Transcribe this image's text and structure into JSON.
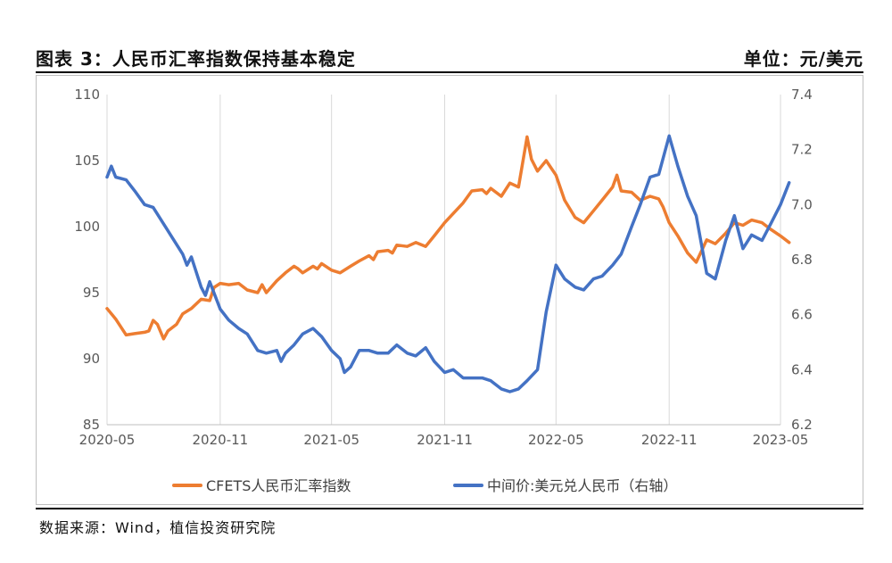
{
  "header": {
    "title": "图表 3：人民币汇率指数保持基本稳定",
    "unit": "单位：元/美元"
  },
  "footer": {
    "source": "数据来源：Wind，植信投资研究院"
  },
  "colors": {
    "orange": "#ED7D31",
    "blue": "#4472C4",
    "grid": "#d9d9d9",
    "axis_text": "#595959"
  },
  "chart_data": {
    "type": "line",
    "title": "",
    "x_start": "2020-05",
    "x_end": "2023-05",
    "xticks": [
      "2020-05",
      "2020-11",
      "2021-05",
      "2021-11",
      "2022-05",
      "2022-11",
      "2023-05"
    ],
    "y_left": {
      "min": 85,
      "max": 110,
      "ticks": [
        85,
        90,
        95,
        100,
        105,
        110
      ]
    },
    "y_right": {
      "min": 6.2,
      "max": 7.4,
      "ticks": [
        "6.2",
        "6.4",
        "6.6",
        "6.8",
        "7.0",
        "7.2",
        "7.4"
      ]
    },
    "grid": "vertical",
    "legend_position": "bottom",
    "series": [
      {
        "name": "CFETS人民币汇率指数",
        "axis": "left",
        "color": "#ED7D31",
        "points": [
          [
            "2020-05",
            93.8
          ],
          [
            "2020-05-15",
            93.0
          ],
          [
            "2020-06",
            91.8
          ],
          [
            "2020-06-15",
            91.9
          ],
          [
            "2020-07",
            92.0
          ],
          [
            "2020-07-08",
            92.1
          ],
          [
            "2020-07-15",
            92.9
          ],
          [
            "2020-07-22",
            92.6
          ],
          [
            "2020-08",
            91.5
          ],
          [
            "2020-08-08",
            92.1
          ],
          [
            "2020-08-22",
            92.6
          ],
          [
            "2020-09",
            93.4
          ],
          [
            "2020-09-15",
            93.8
          ],
          [
            "2020-10",
            94.5
          ],
          [
            "2020-10-15",
            94.4
          ],
          [
            "2020-10-22",
            95.4
          ],
          [
            "2020-11",
            95.7
          ],
          [
            "2020-11-15",
            95.6
          ],
          [
            "2020-12",
            95.7
          ],
          [
            "2020-12-15",
            95.2
          ],
          [
            "2021-01",
            95.0
          ],
          [
            "2021-01-08",
            95.6
          ],
          [
            "2021-01-15",
            95.0
          ],
          [
            "2021-02",
            95.9
          ],
          [
            "2021-02-15",
            96.5
          ],
          [
            "2021-03",
            97.0
          ],
          [
            "2021-03-08",
            96.8
          ],
          [
            "2021-03-15",
            96.5
          ],
          [
            "2021-04",
            97.0
          ],
          [
            "2021-04-08",
            96.8
          ],
          [
            "2021-04-15",
            97.2
          ],
          [
            "2021-05",
            96.7
          ],
          [
            "2021-05-15",
            96.5
          ],
          [
            "2021-06",
            97.0
          ],
          [
            "2021-06-15",
            97.4
          ],
          [
            "2021-07",
            97.8
          ],
          [
            "2021-07-08",
            97.5
          ],
          [
            "2021-07-15",
            98.1
          ],
          [
            "2021-08",
            98.2
          ],
          [
            "2021-08-08",
            98.0
          ],
          [
            "2021-08-15",
            98.6
          ],
          [
            "2021-09",
            98.5
          ],
          [
            "2021-09-15",
            98.8
          ],
          [
            "2021-10",
            98.5
          ],
          [
            "2021-10-15",
            99.3
          ],
          [
            "2021-11",
            100.3
          ],
          [
            "2021-11-15",
            101.0
          ],
          [
            "2021-12",
            101.8
          ],
          [
            "2021-12-15",
            102.7
          ],
          [
            "2022-01",
            102.8
          ],
          [
            "2022-01-08",
            102.5
          ],
          [
            "2022-01-15",
            102.9
          ],
          [
            "2022-02",
            102.3
          ],
          [
            "2022-02-15",
            103.3
          ],
          [
            "2022-03",
            103.0
          ],
          [
            "2022-03-15",
            106.8
          ],
          [
            "2022-03-22",
            105.1
          ],
          [
            "2022-04",
            104.2
          ],
          [
            "2022-04-15",
            105.0
          ],
          [
            "2022-05",
            103.9
          ],
          [
            "2022-05-15",
            102.0
          ],
          [
            "2022-06",
            100.7
          ],
          [
            "2022-06-15",
            100.3
          ],
          [
            "2022-07",
            101.2
          ],
          [
            "2022-07-15",
            102.0
          ],
          [
            "2022-08",
            103.0
          ],
          [
            "2022-08-08",
            103.9
          ],
          [
            "2022-08-15",
            102.7
          ],
          [
            "2022-09",
            102.6
          ],
          [
            "2022-09-15",
            102.0
          ],
          [
            "2022-10",
            102.3
          ],
          [
            "2022-10-15",
            102.1
          ],
          [
            "2022-10-22",
            101.5
          ],
          [
            "2022-11",
            100.3
          ],
          [
            "2022-11-15",
            99.3
          ],
          [
            "2022-12",
            98.0
          ],
          [
            "2022-12-15",
            97.3
          ],
          [
            "2023-01",
            99.0
          ],
          [
            "2023-01-15",
            98.7
          ],
          [
            "2023-02",
            99.5
          ],
          [
            "2023-02-15",
            100.3
          ],
          [
            "2023-03",
            100.1
          ],
          [
            "2023-03-15",
            100.5
          ],
          [
            "2023-04",
            100.3
          ],
          [
            "2023-04-15",
            99.8
          ],
          [
            "2023-05",
            99.3
          ],
          [
            "2023-05-15",
            98.8
          ]
        ]
      },
      {
        "name": "中间价:美元兑人民币（右轴）",
        "axis": "right",
        "color": "#4472C4",
        "points": [
          [
            "2020-05",
            7.1
          ],
          [
            "2020-05-08",
            7.14
          ],
          [
            "2020-05-15",
            7.1
          ],
          [
            "2020-06",
            7.09
          ],
          [
            "2020-06-15",
            7.05
          ],
          [
            "2020-07",
            7.0
          ],
          [
            "2020-07-15",
            6.99
          ],
          [
            "2020-08",
            6.93
          ],
          [
            "2020-08-15",
            6.88
          ],
          [
            "2020-09",
            6.82
          ],
          [
            "2020-09-08",
            6.78
          ],
          [
            "2020-09-15",
            6.81
          ],
          [
            "2020-10",
            6.7
          ],
          [
            "2020-10-08",
            6.67
          ],
          [
            "2020-10-15",
            6.72
          ],
          [
            "2020-11",
            6.62
          ],
          [
            "2020-11-15",
            6.58
          ],
          [
            "2020-12",
            6.55
          ],
          [
            "2020-12-15",
            6.53
          ],
          [
            "2021-01",
            6.47
          ],
          [
            "2021-01-15",
            6.46
          ],
          [
            "2021-02",
            6.47
          ],
          [
            "2021-02-08",
            6.43
          ],
          [
            "2021-02-15",
            6.46
          ],
          [
            "2021-03",
            6.49
          ],
          [
            "2021-03-15",
            6.53
          ],
          [
            "2021-04",
            6.55
          ],
          [
            "2021-04-15",
            6.52
          ],
          [
            "2021-05",
            6.47
          ],
          [
            "2021-05-15",
            6.44
          ],
          [
            "2021-05-22",
            6.39
          ],
          [
            "2021-06",
            6.41
          ],
          [
            "2021-06-15",
            6.47
          ],
          [
            "2021-07",
            6.47
          ],
          [
            "2021-07-15",
            6.46
          ],
          [
            "2021-08",
            6.46
          ],
          [
            "2021-08-15",
            6.49
          ],
          [
            "2021-09",
            6.46
          ],
          [
            "2021-09-15",
            6.45
          ],
          [
            "2021-10",
            6.48
          ],
          [
            "2021-10-15",
            6.43
          ],
          [
            "2021-11",
            6.39
          ],
          [
            "2021-11-15",
            6.4
          ],
          [
            "2021-12",
            6.37
          ],
          [
            "2021-12-15",
            6.37
          ],
          [
            "2022-01",
            6.37
          ],
          [
            "2022-01-15",
            6.36
          ],
          [
            "2022-02",
            6.33
          ],
          [
            "2022-02-15",
            6.32
          ],
          [
            "2022-03",
            6.33
          ],
          [
            "2022-03-15",
            6.36
          ],
          [
            "2022-04",
            6.4
          ],
          [
            "2022-04-15",
            6.61
          ],
          [
            "2022-05",
            6.78
          ],
          [
            "2022-05-15",
            6.73
          ],
          [
            "2022-06",
            6.7
          ],
          [
            "2022-06-15",
            6.69
          ],
          [
            "2022-07",
            6.73
          ],
          [
            "2022-07-15",
            6.74
          ],
          [
            "2022-08",
            6.78
          ],
          [
            "2022-08-15",
            6.82
          ],
          [
            "2022-09",
            6.92
          ],
          [
            "2022-09-15",
            7.0
          ],
          [
            "2022-10",
            7.1
          ],
          [
            "2022-10-15",
            7.11
          ],
          [
            "2022-11",
            7.25
          ],
          [
            "2022-11-15",
            7.14
          ],
          [
            "2022-12",
            7.03
          ],
          [
            "2022-12-15",
            6.96
          ],
          [
            "2023-01",
            6.75
          ],
          [
            "2023-01-15",
            6.73
          ],
          [
            "2023-02",
            6.87
          ],
          [
            "2023-02-15",
            6.96
          ],
          [
            "2023-03",
            6.84
          ],
          [
            "2023-03-15",
            6.89
          ],
          [
            "2023-04",
            6.87
          ],
          [
            "2023-04-15",
            6.93
          ],
          [
            "2023-05",
            7.0
          ],
          [
            "2023-05-15",
            7.08
          ]
        ]
      }
    ]
  }
}
